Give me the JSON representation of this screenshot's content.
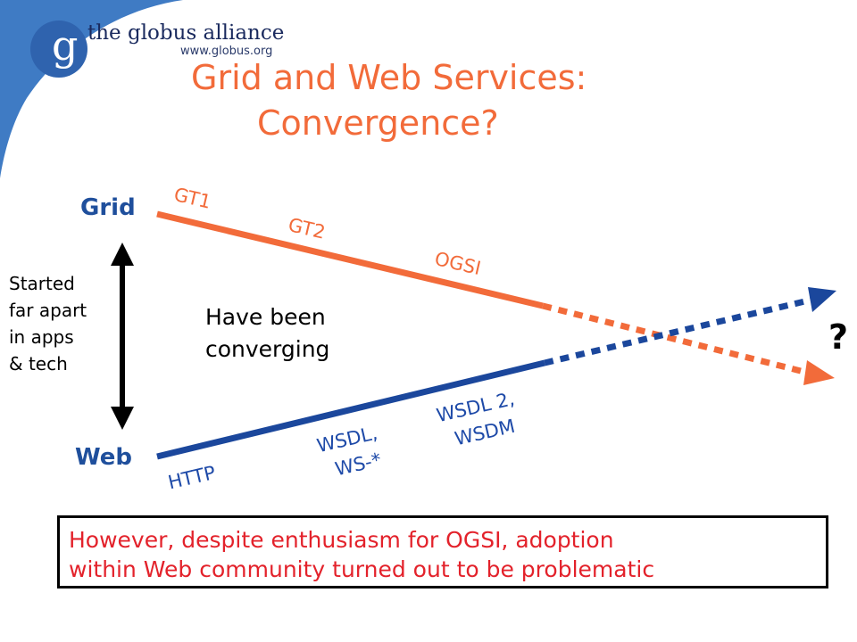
{
  "logo": {
    "mark": "g",
    "name": "the globus alliance",
    "url": "www.globus.org"
  },
  "title": {
    "line1": "Grid and Web Services:",
    "line2": "Convergence?"
  },
  "diagram": {
    "grid_label": "Grid",
    "web_label": "Web",
    "side_note": [
      "Started",
      "far apart",
      "in apps",
      "& tech"
    ],
    "center_note": [
      "Have been",
      "converging"
    ],
    "grid_milestones": [
      "GT1",
      "GT2",
      "OGSI"
    ],
    "web_milestones": [
      "HTTP",
      [
        "WSDL,",
        "WS-*"
      ],
      [
        "WSDL 2,",
        "WSDM"
      ]
    ],
    "outcome": "?",
    "colors": {
      "grid": "#f26b3a",
      "web": "#1b479c",
      "arrow": "#000000"
    }
  },
  "callout": {
    "line1": "However, despite enthusiasm for OGSI, adoption",
    "line2": "within Web community turned out to be problematic"
  }
}
